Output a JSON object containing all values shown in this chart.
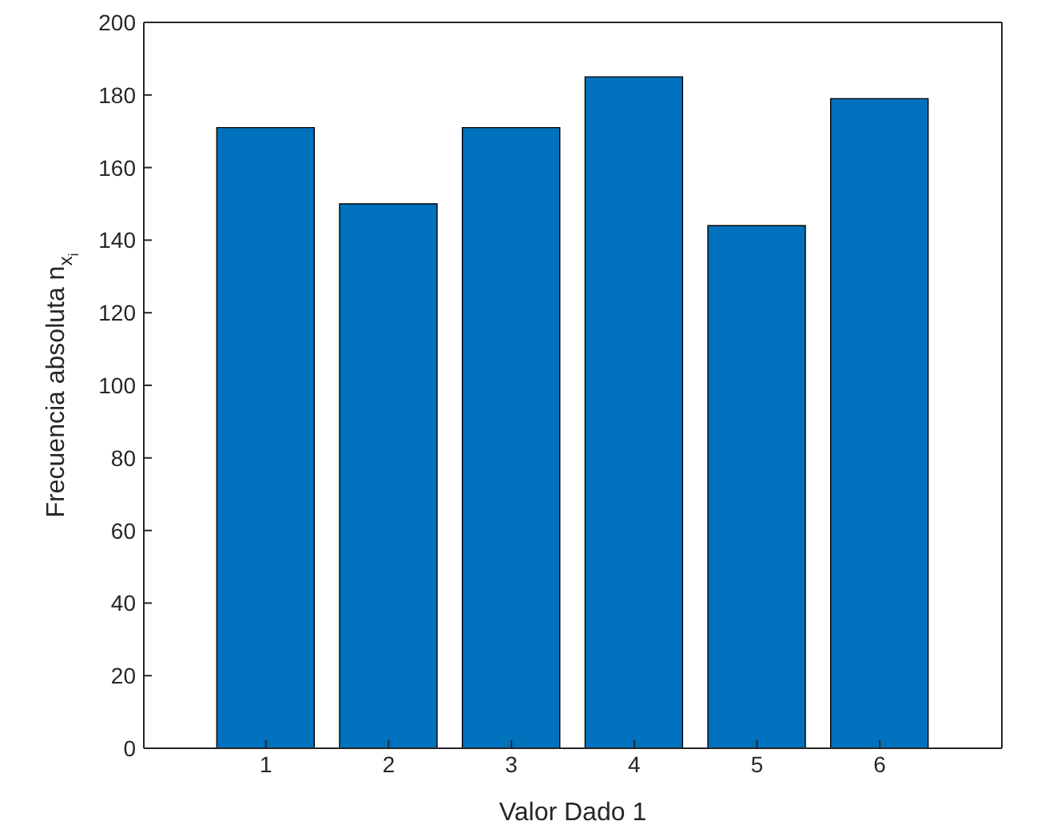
{
  "chart_data": {
    "type": "bar",
    "xlabel": "Valor Dado 1",
    "ylabel": "Frecuencia absoluta n$_{x}$$_{i}$",
    "categories": [
      "1",
      "2",
      "3",
      "4",
      "5",
      "6"
    ],
    "values": [
      171,
      150,
      171,
      185,
      144,
      179
    ],
    "color": "#0072bd",
    "ylim": [
      0,
      200
    ],
    "yticks": [
      0,
      20,
      40,
      60,
      80,
      100,
      120,
      140,
      160,
      180,
      200
    ]
  }
}
